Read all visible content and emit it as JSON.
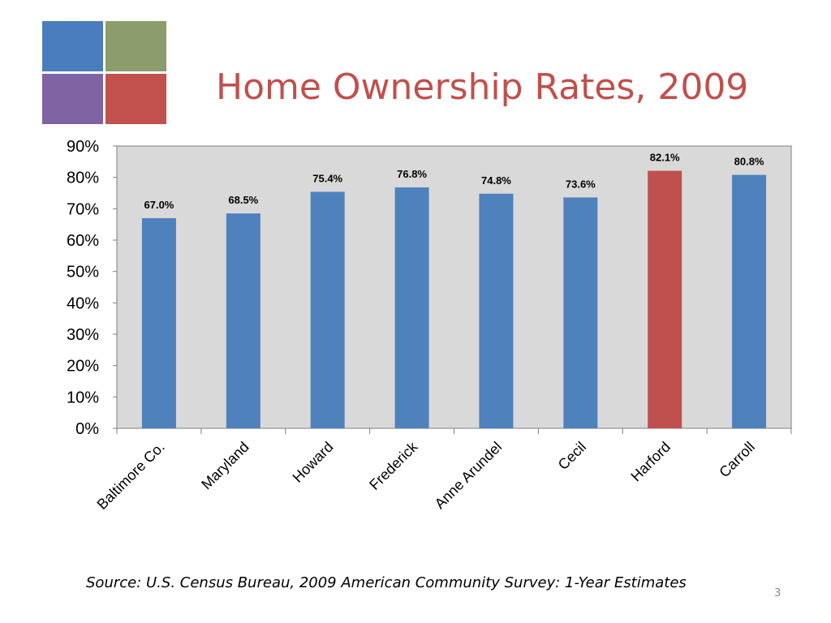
{
  "slide": {
    "title": "Home Ownership Rates, 2009",
    "source": "Source: U.S. Census Bureau, 2009 American Community Survey: 1-Year Estimates",
    "page_number": "3"
  },
  "colors": {
    "bar_default": "#4f81bd",
    "bar_highlight": "#c0504d",
    "plot_background": "#d9d9d9",
    "title": "#c0504d"
  },
  "chart_data": {
    "type": "bar",
    "categories": [
      "Baltimore Co.",
      "Maryland",
      "Howard",
      "Frederick",
      "Anne Arundel",
      "Cecil",
      "Harford",
      "Carroll"
    ],
    "values": [
      67.0,
      68.5,
      75.4,
      76.8,
      74.8,
      73.6,
      82.1,
      80.8
    ],
    "data_labels": [
      "67.0%",
      "68.5%",
      "75.4%",
      "76.8%",
      "74.8%",
      "73.6%",
      "82.1%",
      "80.8%"
    ],
    "highlight_category": "Harford",
    "title": "Home Ownership Rates, 2009",
    "xlabel": "",
    "ylabel": "",
    "ylim": [
      0,
      90
    ],
    "y_ticks": [
      0,
      10,
      20,
      30,
      40,
      50,
      60,
      70,
      80,
      90
    ],
    "y_tick_labels": [
      "0%",
      "10%",
      "20%",
      "30%",
      "40%",
      "50%",
      "60%",
      "70%",
      "80%",
      "90%"
    ],
    "grid": false,
    "legend": "none"
  }
}
